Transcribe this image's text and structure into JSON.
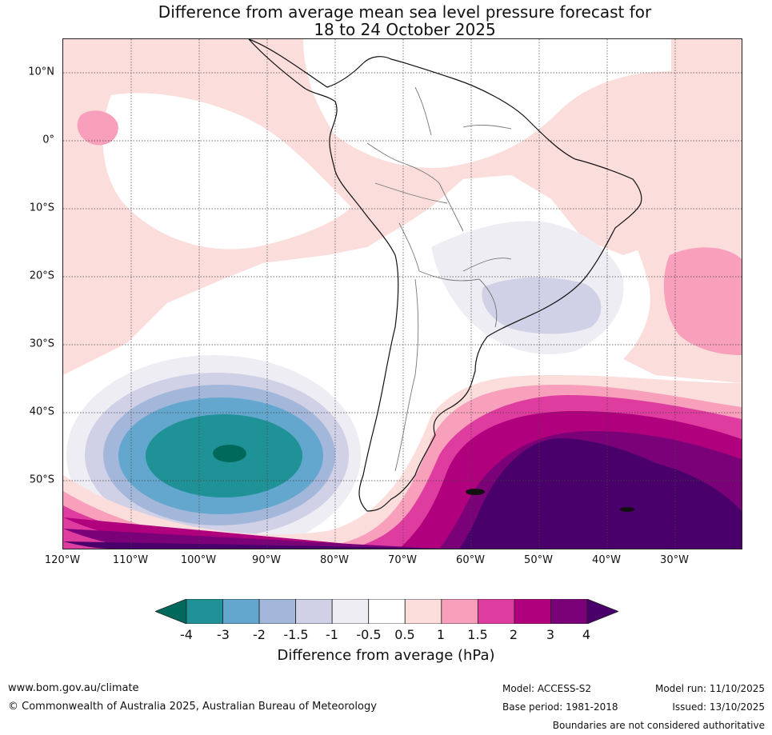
{
  "title": {
    "line1": "Difference from average mean sea level pressure forecast for",
    "line2": "18 to 24 October 2025"
  },
  "map": {
    "lat_labels": [
      "10°N",
      "0°",
      "10°S",
      "20°S",
      "30°S",
      "40°S",
      "50°S"
    ],
    "lon_labels": [
      "120°W",
      "110°W",
      "100°W",
      "90°W",
      "80°W",
      "70°W",
      "60°W",
      "50°W",
      "40°W",
      "30°W"
    ],
    "region": "South America and surrounding oceans"
  },
  "colorbar": {
    "ticks": [
      "-4",
      "-3",
      "-2",
      "-1.5",
      "-1",
      "-0.5",
      "0.5",
      "1",
      "1.5",
      "2",
      "3",
      "4"
    ],
    "colors": [
      "#00695c",
      "#1e9296",
      "#63a7cf",
      "#a3b7db",
      "#d0d0e6",
      "#efedf4",
      "#ffffff",
      "#fbdedc",
      "#f79fbb",
      "#de3c9f",
      "#b1007d",
      "#7a0178",
      "#49006a"
    ],
    "label": "Difference from average (hPa)"
  },
  "footer": {
    "website": "www.bom.gov.au/climate",
    "copyright": "© Commonwealth of Australia 2025, Australian Bureau of Meteorology",
    "model": "Model: ACCESS-S2",
    "model_run": "Model run: 11/10/2025",
    "base_period": "Base period: 1981-2018",
    "issued": "Issued: 13/10/2025",
    "disclaimer": "Boundaries are not considered authoritative"
  }
}
